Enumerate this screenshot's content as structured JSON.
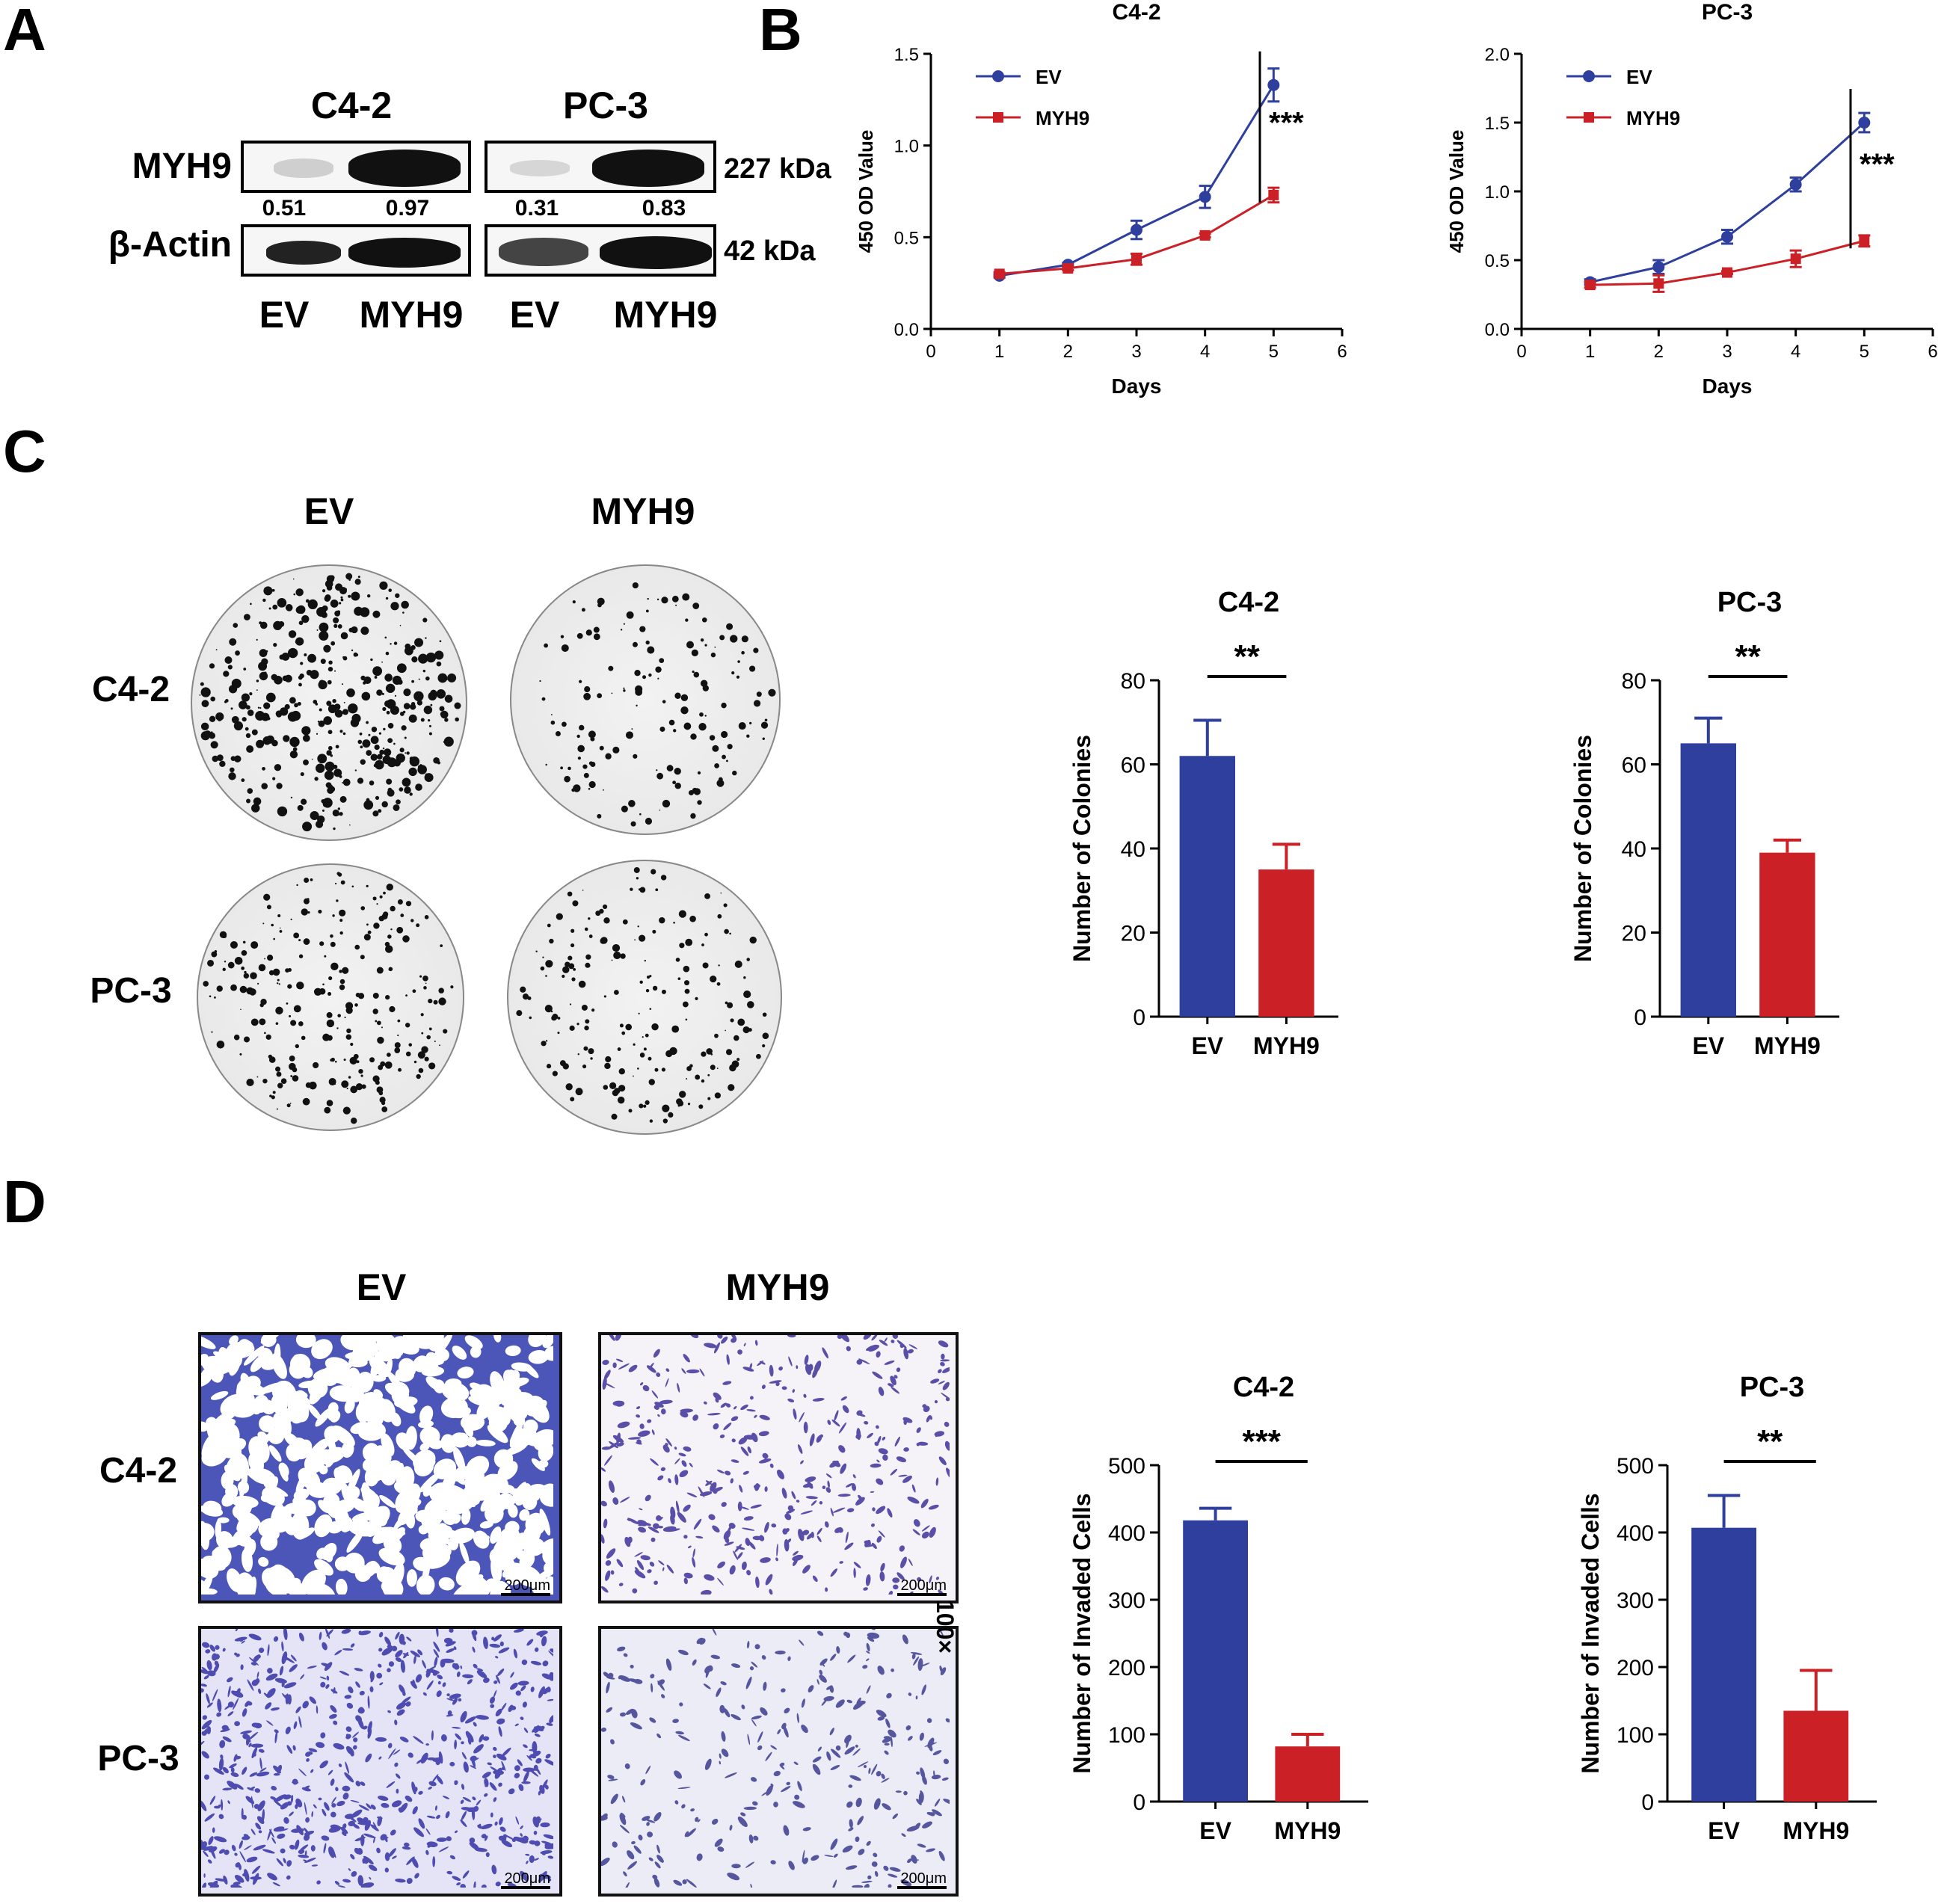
{
  "panels": {
    "a": "A",
    "b": "B",
    "c": "C",
    "d": "D"
  },
  "panel_a": {
    "cell_lines": [
      "C4-2",
      "PC-3"
    ],
    "row_labels": [
      "MYH9",
      "β-Actin"
    ],
    "sizes": [
      "227 kDa",
      "42 kDa"
    ],
    "quant": [
      "0.51",
      "0.97",
      "0.31",
      "0.83"
    ],
    "lanes": [
      "EV",
      "MYH9",
      "EV",
      "MYH9"
    ]
  },
  "panel_c": {
    "columns": [
      "EV",
      "MYH9"
    ],
    "rows": [
      "C4-2",
      "PC-3"
    ]
  },
  "panel_d": {
    "columns": [
      "EV",
      "MYH9"
    ],
    "rows": [
      "C4-2",
      "PC-3"
    ],
    "scale_bar": "200μm",
    "magnification": "100×"
  },
  "colors": {
    "ev": "#2e3f9e",
    "myh9": "#cc2027"
  },
  "chart_data": [
    {
      "id": "b1",
      "type": "line",
      "title": "C4-2",
      "xlabel": "Days",
      "ylabel": "450 OD Value",
      "x": [
        1,
        2,
        3,
        4,
        5
      ],
      "xlim": [
        0,
        6
      ],
      "xticks": [
        "0",
        "1",
        "2",
        "3",
        "4",
        "5",
        "6"
      ],
      "ylim": [
        0,
        1.5
      ],
      "yticks": [
        "0.0",
        "0.5",
        "1.0",
        "1.5"
      ],
      "series": [
        {
          "name": "EV",
          "values": [
            0.29,
            0.35,
            0.54,
            0.72,
            1.33
          ],
          "err": [
            0.01,
            0.01,
            0.05,
            0.06,
            0.09
          ]
        },
        {
          "name": "MYH9",
          "values": [
            0.3,
            0.33,
            0.38,
            0.51,
            0.73
          ],
          "err": [
            0.01,
            0.01,
            0.03,
            0.01,
            0.04
          ]
        }
      ],
      "significance": "***"
    },
    {
      "id": "b2",
      "type": "line",
      "title": "PC-3",
      "xlabel": "Days",
      "ylabel": "450 OD Value",
      "x": [
        1,
        2,
        3,
        4,
        5
      ],
      "xlim": [
        0,
        6
      ],
      "xticks": [
        "0",
        "1",
        "2",
        "3",
        "4",
        "5",
        "6"
      ],
      "ylim": [
        0,
        2.0
      ],
      "yticks": [
        "0.0",
        "0.5",
        "1.0",
        "1.5",
        "2.0"
      ],
      "series": [
        {
          "name": "EV",
          "values": [
            0.34,
            0.45,
            0.67,
            1.05,
            1.5
          ],
          "err": [
            0.02,
            0.05,
            0.05,
            0.05,
            0.07
          ]
        },
        {
          "name": "MYH9",
          "values": [
            0.32,
            0.33,
            0.41,
            0.51,
            0.64
          ],
          "err": [
            0.02,
            0.06,
            0.01,
            0.06,
            0.04
          ]
        }
      ],
      "significance": "***"
    },
    {
      "id": "c1",
      "type": "bar",
      "title": "C4-2",
      "ylabel": "Number of Colonies",
      "categories": [
        "EV",
        "MYH9"
      ],
      "values": [
        62,
        35
      ],
      "err": [
        8.5,
        6
      ],
      "ylim": [
        0,
        80
      ],
      "yticks": [
        "0",
        "20",
        "40",
        "60",
        "80"
      ],
      "significance": "**"
    },
    {
      "id": "c2",
      "type": "bar",
      "title": "PC-3",
      "ylabel": "Number of Colonies",
      "categories": [
        "EV",
        "MYH9"
      ],
      "values": [
        65,
        39
      ],
      "err": [
        6,
        3
      ],
      "ylim": [
        0,
        80
      ],
      "yticks": [
        "0",
        "20",
        "40",
        "60",
        "80"
      ],
      "significance": "**"
    },
    {
      "id": "d1",
      "type": "bar",
      "title": "C4-2",
      "ylabel": "Number of Invaded Cells",
      "categories": [
        "EV",
        "MYH9"
      ],
      "values": [
        418,
        82
      ],
      "err": [
        18,
        18
      ],
      "ylim": [
        0,
        500
      ],
      "yticks": [
        "0",
        "100",
        "200",
        "300",
        "400",
        "500"
      ],
      "significance": "***"
    },
    {
      "id": "d2",
      "type": "bar",
      "title": "PC-3",
      "ylabel": "Number of Invaded Cells",
      "categories": [
        "EV",
        "MYH9"
      ],
      "values": [
        407,
        135
      ],
      "err": [
        48,
        60
      ],
      "ylim": [
        0,
        500
      ],
      "yticks": [
        "0",
        "100",
        "200",
        "300",
        "400",
        "500"
      ],
      "significance": "**"
    }
  ]
}
